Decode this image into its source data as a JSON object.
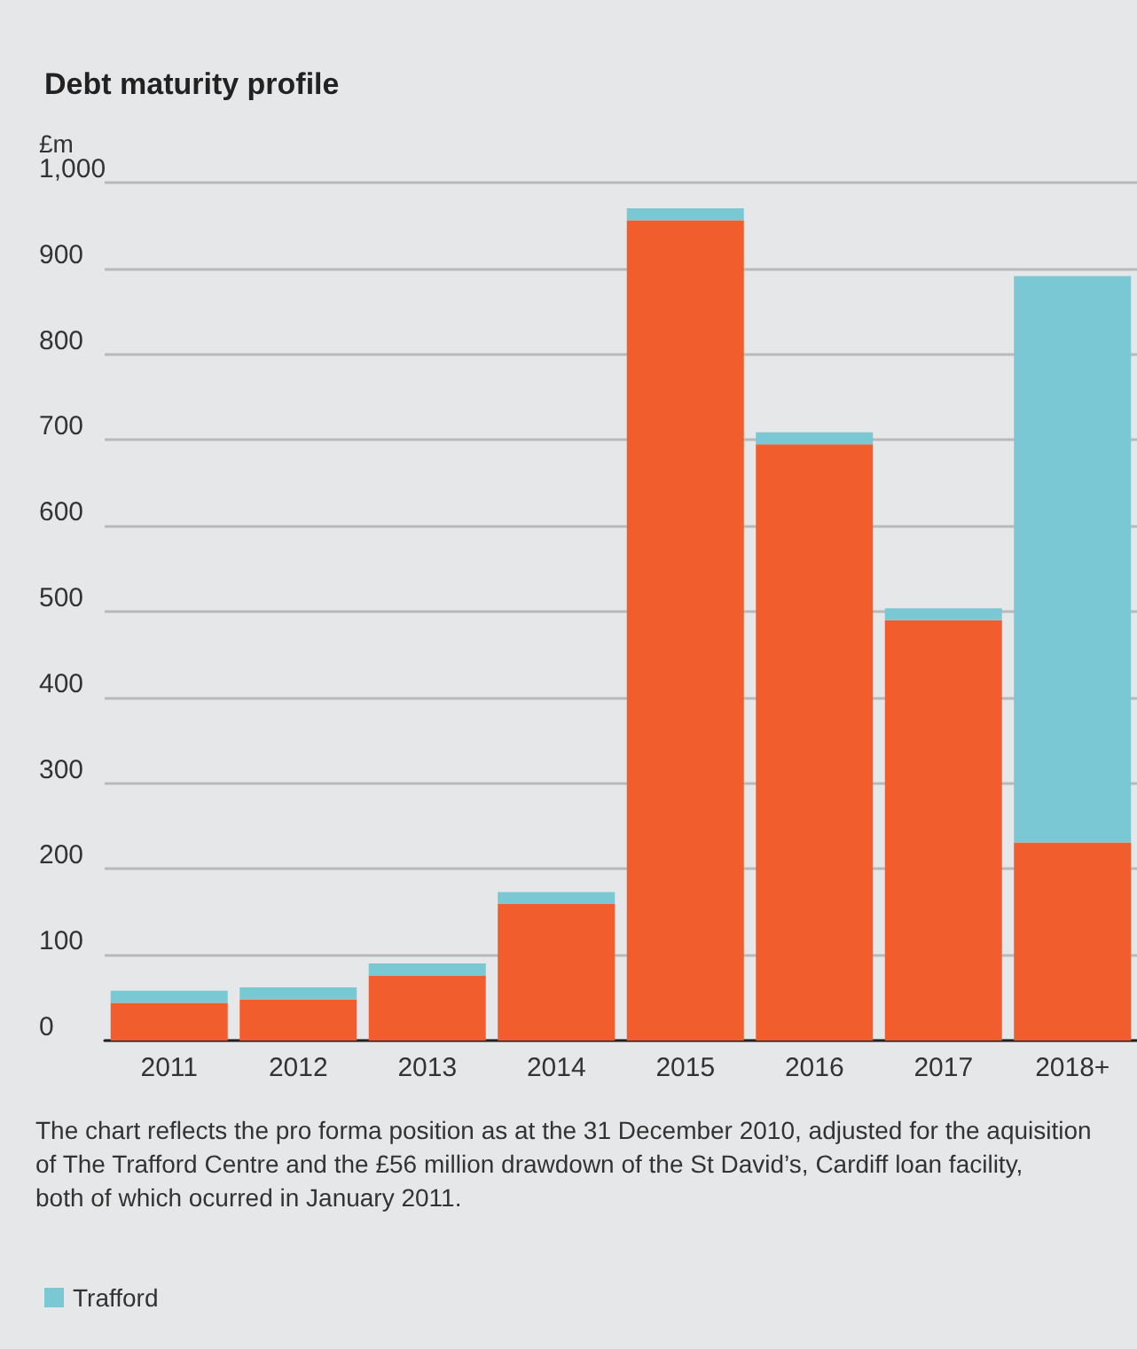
{
  "chart_data": {
    "type": "bar",
    "title": "Debt maturity profile",
    "ylabel": "£m",
    "categories": [
      "2011",
      "2012",
      "2013",
      "2014",
      "2015",
      "2016",
      "2017",
      "2018+"
    ],
    "stacked": true,
    "series": [
      {
        "color": "#f15d2c",
        "values": [
          44,
          48,
          76,
          159,
          956,
          695,
          490,
          231
        ]
      },
      {
        "name": "Trafford",
        "color": "#7ac8d4",
        "values": [
          14,
          14,
          14,
          14,
          14,
          14,
          14,
          660
        ]
      }
    ],
    "ylim": [
      0,
      1000
    ],
    "yticks": [
      0,
      100,
      200,
      300,
      400,
      500,
      600,
      700,
      800,
      900,
      {
        "value": 1000,
        "label": "1,000"
      }
    ],
    "grid": "y",
    "legend": "bottom left",
    "annotations": [
      "The chart reflects the pro forma position as at the 31 December 2010, adjusted for the aquisition of The Trafford Centre and the £56 million drawdown of the St David’s, Cardiff loan facility, both of which ocurred in January 2011."
    ]
  }
}
